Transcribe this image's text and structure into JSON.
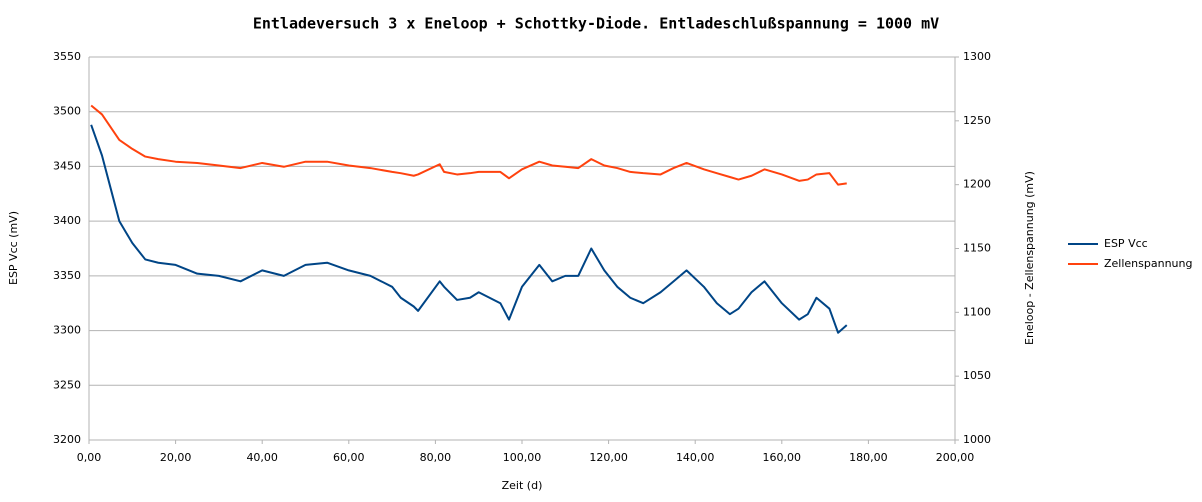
{
  "chart_data": {
    "type": "line",
    "title": "Entladeversuch 3 x Eneloop + Schottky-Diode. Entladeschlußspannung = 1000 mV",
    "x_label": "Zeit (d)",
    "y_label": "ESP Vcc (mV)",
    "y2_label": "Eneloop - Zellenspannung (mV)",
    "x": [
      0.5,
      3,
      5,
      7,
      10,
      13,
      16,
      20,
      25,
      30,
      35,
      40,
      45,
      50,
      55,
      60,
      65,
      70,
      72,
      75,
      76,
      81,
      82,
      85,
      88,
      90,
      95,
      97,
      100,
      104,
      107,
      110,
      113,
      116,
      119,
      122,
      125,
      128,
      132,
      135,
      138,
      142,
      145,
      148,
      150,
      153,
      156,
      160,
      164,
      166,
      168,
      171,
      173,
      175
    ],
    "series": [
      {
        "name": "ESP Vcc",
        "color": "#004586",
        "values": [
          3488,
          3460,
          3430,
          3400,
          3380,
          3365,
          3362,
          3360,
          3352,
          3350,
          3345,
          3355,
          3350,
          3360,
          3362,
          3355,
          3350,
          3340,
          3330,
          3322,
          3318,
          3345,
          3340,
          3328,
          3330,
          3335,
          3325,
          3310,
          3340,
          3360,
          3345,
          3350,
          3350,
          3375,
          3355,
          3340,
          3330,
          3325,
          3335,
          3345,
          3355,
          3340,
          3325,
          3315,
          3320,
          3335,
          3345,
          3325,
          3310,
          3315,
          3330,
          3320,
          3298,
          3305
        ]
      },
      {
        "name": "Zellenspannung",
        "color": "#ff420e",
        "axis": "y2",
        "values": [
          1262,
          1255,
          1245,
          1235,
          1228,
          1222,
          1220,
          1218,
          1217,
          1215,
          1213,
          1217,
          1214,
          1218,
          1218,
          1215,
          1213,
          1210,
          1209,
          1207,
          1208,
          1216,
          1210,
          1208,
          1209,
          1210,
          1210,
          1205,
          1212,
          1218,
          1215,
          1214,
          1213,
          1220,
          1215,
          1213,
          1210,
          1209,
          1208,
          1213,
          1217,
          1212,
          1209,
          1206,
          1204,
          1207,
          1212,
          1208,
          1203,
          1204,
          1208,
          1209,
          1200,
          1201
        ]
      }
    ],
    "xlim": [
      0,
      200
    ],
    "xticks": [
      {
        "value": 0,
        "label": "0,00"
      },
      {
        "value": 20,
        "label": "20,00"
      },
      {
        "value": 40,
        "label": "40,00"
      },
      {
        "value": 60,
        "label": "60,00"
      },
      {
        "value": 80,
        "label": "80,00"
      },
      {
        "value": 100,
        "label": "100,00"
      },
      {
        "value": 120,
        "label": "120,00"
      },
      {
        "value": 140,
        "label": "140,00"
      },
      {
        "value": 160,
        "label": "160,00"
      },
      {
        "value": 180,
        "label": "180,00"
      },
      {
        "value": 200,
        "label": "200,00"
      }
    ],
    "ylim": [
      3200,
      3550
    ],
    "yticks": [
      3200,
      3250,
      3300,
      3350,
      3400,
      3450,
      3500,
      3550
    ],
    "y2lim": [
      1000,
      1300
    ],
    "y2ticks": [
      1000,
      1050,
      1100,
      1150,
      1200,
      1250,
      1300
    ],
    "grid": true,
    "legend": "right"
  }
}
